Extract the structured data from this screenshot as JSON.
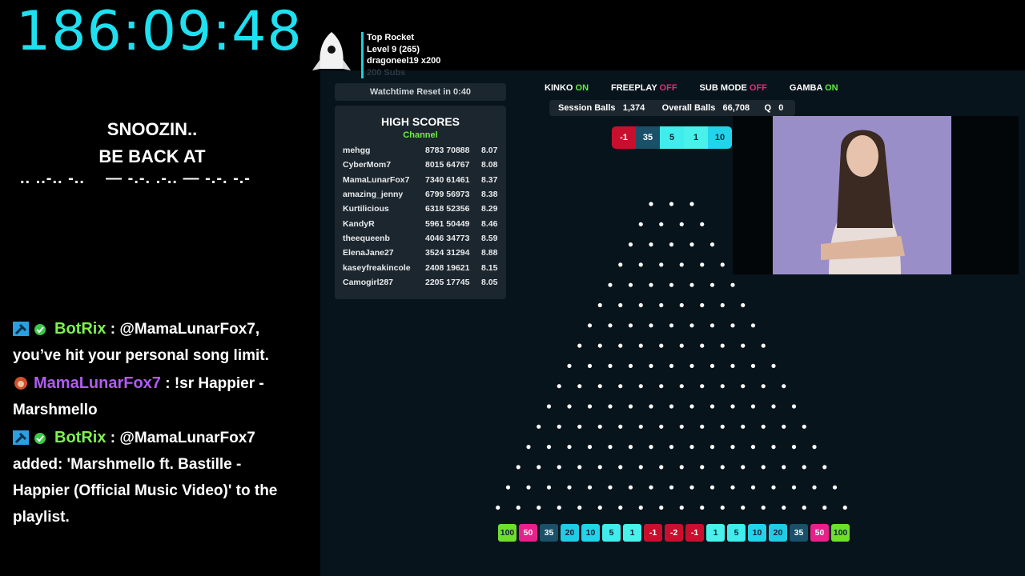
{
  "timer": "186:09:48",
  "status": {
    "line1": "SNOOZIN..",
    "line2": "BE BACK AT",
    "morse": ".. ..-.. -..    — -.-. .-.. — -.-. -.-"
  },
  "chat": [
    {
      "user": "BotRix",
      "user_color": "#7ef050",
      "badges": [
        "hammer-icon",
        "verified-icon"
      ],
      "text": " : @MamaLunarFox7, you’ve hit your personal song limit."
    },
    {
      "user": "MamaLunarFox7",
      "user_color": "#b05cf0",
      "badges": [
        "avatar-icon"
      ],
      "text": " : !sr Happier - Marshmello"
    },
    {
      "user": "BotRix",
      "user_color": "#7ef050",
      "badges": [
        "hammer-icon",
        "verified-icon"
      ],
      "text": " : @MamaLunarFox7 added: 'Marshmello ft. Bastille - Happier (Official Music Video)' to the playlist."
    }
  ],
  "rocket": {
    "title": "Top Rocket",
    "level": "Level 9  (265)",
    "user": "dragoneel19 x200",
    "subs": "200 Subs"
  },
  "watchtime": "Watchtime Reset in 0:40",
  "high_scores": {
    "title": "HIGH SCORES",
    "subtitle": "Channel",
    "rows": [
      {
        "name": "mehgg",
        "a": "8783",
        "b": "70888",
        "c": "8.07"
      },
      {
        "name": "CyberMom7",
        "a": "8015",
        "b": "64767",
        "c": "8.08"
      },
      {
        "name": "MamaLunarFox7",
        "a": "7340",
        "b": "61461",
        "c": "8.37"
      },
      {
        "name": "amazing_jenny",
        "a": "6799",
        "b": "56973",
        "c": "8.38"
      },
      {
        "name": "Kurtilicious",
        "a": "6318",
        "b": "52356",
        "c": "8.29"
      },
      {
        "name": "KandyR",
        "a": "5961",
        "b": "50449",
        "c": "8.46"
      },
      {
        "name": "theequeenb",
        "a": "4046",
        "b": "34773",
        "c": "8.59"
      },
      {
        "name": "ElenaJane27",
        "a": "3524",
        "b": "31294",
        "c": "8.88"
      },
      {
        "name": "kaseyfreakincole",
        "a": "2408",
        "b": "19621",
        "c": "8.15"
      },
      {
        "name": "Camogirl287",
        "a": "2205",
        "b": "17745",
        "c": "8.05"
      }
    ]
  },
  "toggles": [
    {
      "label": "KINKO",
      "state": "ON"
    },
    {
      "label": "FREEPLAY",
      "state": "OFF"
    },
    {
      "label": "SUB MODE",
      "state": "OFF"
    },
    {
      "label": "GAMBA",
      "state": "ON"
    }
  ],
  "stats": {
    "session_label": "Session Balls",
    "session": "1,374",
    "overall_label": "Overall Balls",
    "overall": "66,708",
    "queue_label": "Q",
    "queue": "0"
  },
  "recent": [
    "-1",
    "35",
    "5",
    "1",
    "10"
  ],
  "slots": [
    "100",
    "50",
    "35",
    "20",
    "10",
    "5",
    "1",
    "-1",
    "-2",
    "-1",
    "1",
    "5",
    "10",
    "20",
    "35",
    "50",
    "100"
  ],
  "slot_colors": {
    "100": "#6ee02c",
    "50": "#e8208a",
    "35": "#1a5068",
    "20": "#20cce4",
    "10": "#22d4ea",
    "5": "#40ecec",
    "1": "#4af0ea",
    "-1": "#c8102e",
    "-2": "#c8102e"
  }
}
